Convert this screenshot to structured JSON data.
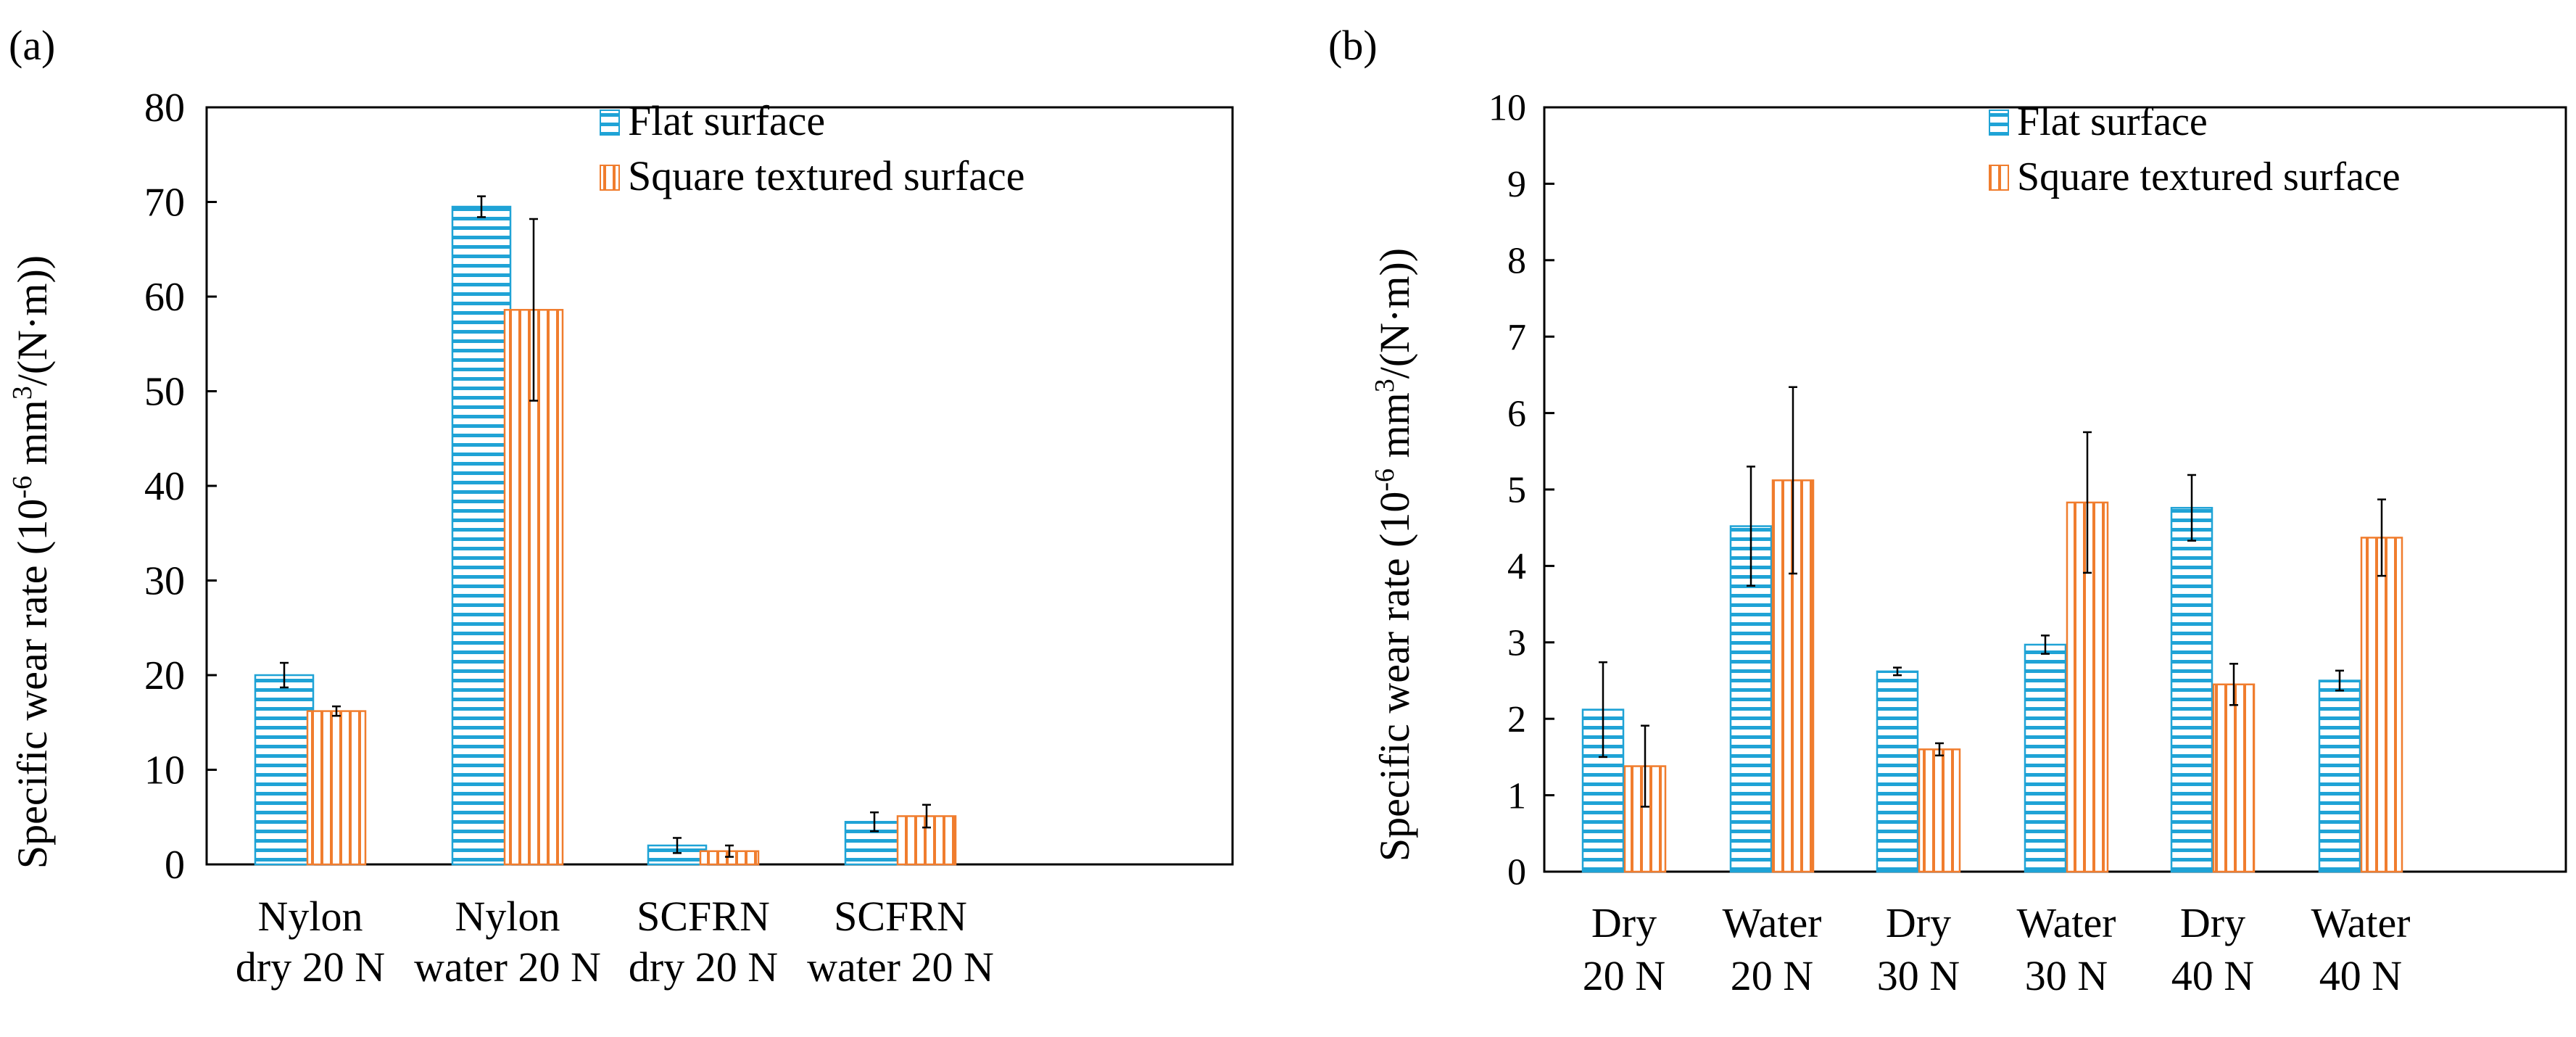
{
  "panels": {
    "a": {
      "label": "(a)"
    },
    "b": {
      "label": "(b)"
    }
  },
  "ylabel": {
    "main": "Specific wear rate (10",
    "exp1": "-6",
    "mid": " mm",
    "exp2": "3",
    "tail": "/(N·m))"
  },
  "colors": {
    "flat": "#1fa3d6",
    "textured": "#f07d2e",
    "error": "#000000"
  },
  "chart_data": [
    {
      "type": "bar",
      "panel": "(a)",
      "title": "",
      "xlabel": "",
      "ylabel": "Specific wear rate (10-6 mm3/(N·m))",
      "ylim": [
        0,
        80
      ],
      "yticks": [
        0,
        10,
        20,
        30,
        40,
        50,
        60,
        70,
        80
      ],
      "legend_position": "top-center",
      "categories": [
        [
          "Nylon",
          "dry 20 N"
        ],
        [
          "Nylon",
          "water 20 N"
        ],
        [
          "SCFRN",
          "dry 20 N"
        ],
        [
          "SCFRN",
          "water 20 N"
        ]
      ],
      "series": [
        {
          "name": "Flat surface",
          "color": "#1fa3d6",
          "values": [
            20,
            69.5,
            2,
            4.5
          ],
          "errors": [
            1.3,
            1.1,
            0.8,
            1.0
          ]
        },
        {
          "name": "Square textured surface",
          "color": "#f07d2e",
          "values": [
            16.2,
            58.6,
            1.4,
            5.1
          ],
          "errors": [
            0.5,
            9.6,
            0.6,
            1.2
          ]
        }
      ]
    },
    {
      "type": "bar",
      "panel": "(b)",
      "title": "",
      "xlabel": "",
      "ylabel": "Specific wear rate (10-6 mm3/(N·m))",
      "ylim": [
        0,
        10
      ],
      "yticks": [
        0,
        1,
        2,
        3,
        4,
        5,
        6,
        7,
        8,
        9,
        10
      ],
      "legend_position": "top-center",
      "categories": [
        [
          "Dry",
          "20 N"
        ],
        [
          "Water",
          "20 N"
        ],
        [
          "Dry",
          "30 N"
        ],
        [
          "Water",
          "30 N"
        ],
        [
          "Dry",
          "40 N"
        ],
        [
          "Water",
          "40 N"
        ]
      ],
      "series": [
        {
          "name": "Flat surface",
          "color": "#1fa3d6",
          "values": [
            2.12,
            4.52,
            2.62,
            2.97,
            4.76,
            2.5
          ],
          "errors": [
            0.62,
            0.78,
            0.05,
            0.12,
            0.43,
            0.13
          ]
        },
        {
          "name": "Square textured surface",
          "color": "#f07d2e",
          "values": [
            1.38,
            5.12,
            1.6,
            4.83,
            2.45,
            4.37
          ],
          "errors": [
            0.53,
            1.22,
            0.08,
            0.92,
            0.27,
            0.5
          ]
        }
      ]
    }
  ]
}
